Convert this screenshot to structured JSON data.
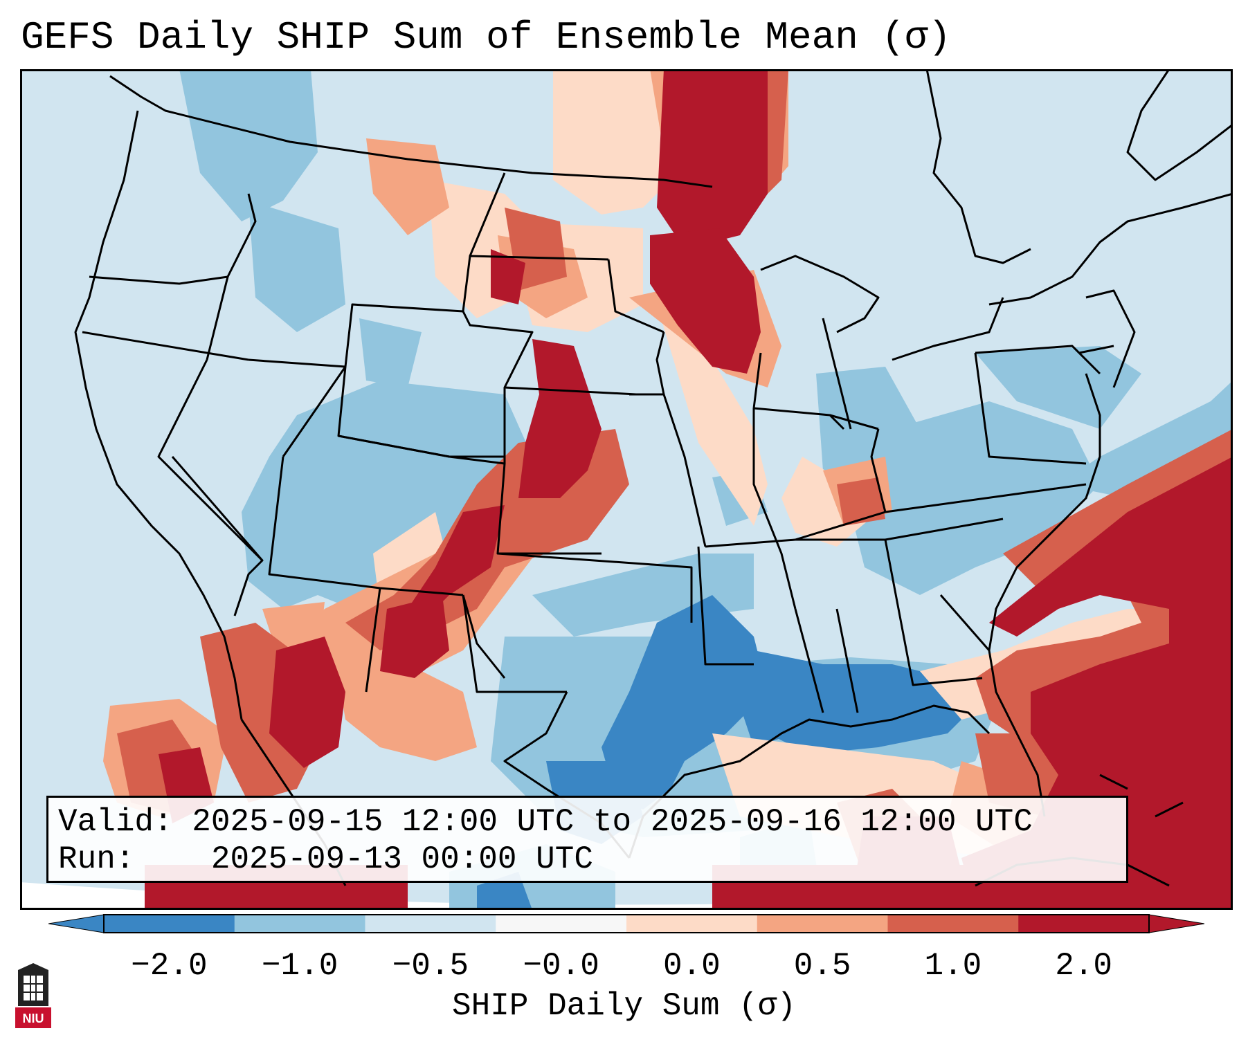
{
  "title": "GEFS Daily SHIP Sum of Ensemble Mean (σ)",
  "info": {
    "valid_label": "Valid:",
    "valid_value": "2025-09-15 12:00 UTC to 2025-09-16 12:00 UTC",
    "run_label": "Run:",
    "run_value": "2025-09-13 00:00 UTC"
  },
  "colorbar": {
    "label": "SHIP Daily Sum (σ)",
    "ticks": [
      "−2.0",
      "−1.0",
      "−0.5",
      "−0.0",
      "0.0",
      "0.5",
      "1.0",
      "2.0"
    ],
    "colors": [
      "#3a86c4",
      "#92c5de",
      "#d1e5f0",
      "#f7f7f7",
      "#fddbc7",
      "#f4a582",
      "#d6604d",
      "#b2182b"
    ]
  },
  "logo": {
    "text": "NIU"
  }
}
